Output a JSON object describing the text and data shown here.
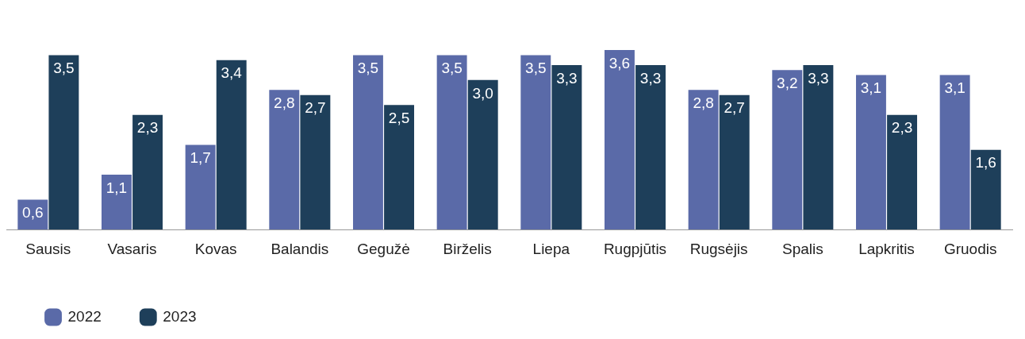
{
  "chart_data": {
    "type": "bar",
    "categories": [
      "Sausis",
      "Vasaris",
      "Kovas",
      "Balandis",
      "Gegužė",
      "Birželis",
      "Liepa",
      "Rugpjūtis",
      "Rugsėjis",
      "Spalis",
      "Lapkritis",
      "Gruodis"
    ],
    "series": [
      {
        "name": "2022",
        "color": "#5a6aa8",
        "values": [
          0.6,
          1.1,
          1.7,
          2.8,
          3.5,
          3.5,
          3.5,
          3.6,
          2.8,
          3.2,
          3.1,
          3.1
        ],
        "value_labels": [
          "0,6",
          "1,1",
          "1,7",
          "2,8",
          "3,5",
          "3,5",
          "3,5",
          "3,6",
          "2,8",
          "3,2",
          "3,1",
          "3,1"
        ]
      },
      {
        "name": "2023",
        "color": "#1e3f5a",
        "values": [
          3.5,
          2.3,
          3.4,
          2.7,
          2.5,
          3.0,
          3.3,
          3.3,
          2.7,
          3.3,
          2.3,
          1.6
        ],
        "value_labels": [
          "3,5",
          "2,3",
          "3,4",
          "2,7",
          "2,5",
          "3,0",
          "3,3",
          "3,3",
          "2,7",
          "3,3",
          "2,3",
          "1,6"
        ]
      }
    ],
    "grid": false,
    "legend": "bottom left"
  }
}
